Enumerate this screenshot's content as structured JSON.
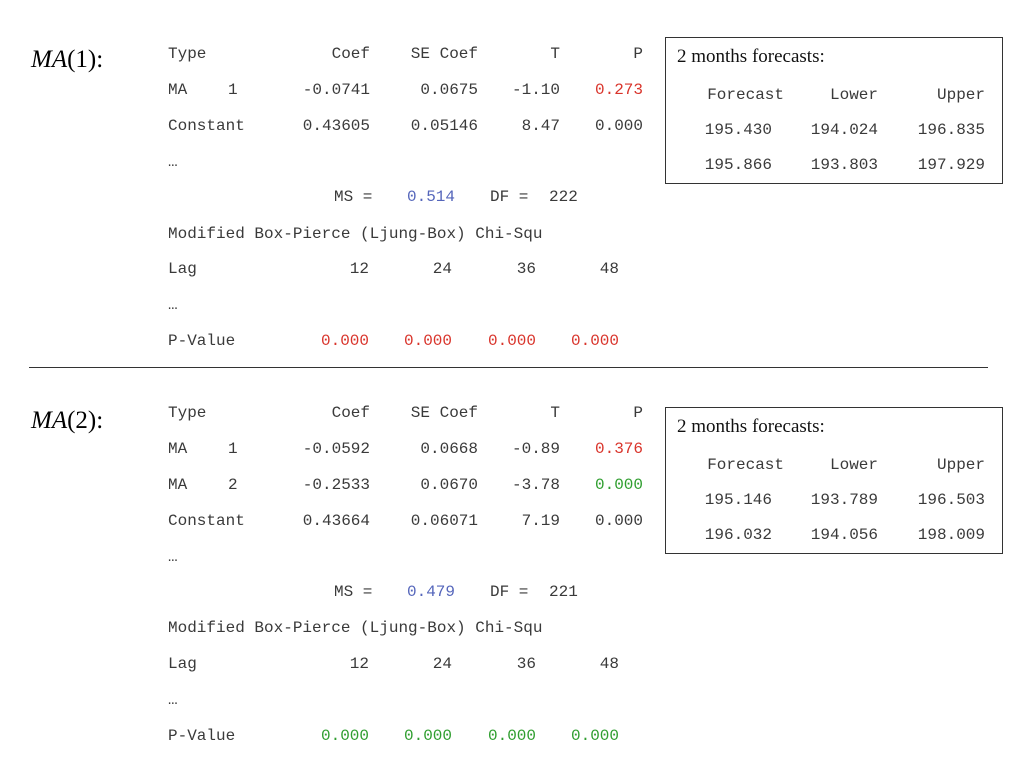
{
  "models": [
    {
      "label_name": "MA",
      "label_order": "(1):",
      "coef_header": [
        "Type",
        "Coef",
        "SE Coef",
        "T",
        "P"
      ],
      "coef_rows": [
        {
          "type_a": "MA",
          "type_b": "1",
          "coef": "-0.0741",
          "se": "0.0675",
          "t": "-1.10",
          "p": "0.273",
          "p_color": "#d9342b"
        },
        {
          "type_a": "Constant",
          "type_b": "",
          "coef": "0.43605",
          "se": "0.05146",
          "t": "8.47",
          "p": "0.000",
          "p_color": "#3a3a3a"
        }
      ],
      "ellipsis": "…",
      "ms_label": "MS =",
      "ms_value": "0.514",
      "df_label": "DF =",
      "df_value": "222",
      "boxpierce_title": "Modified Box-Pierce (Ljung-Box) Chi-Squ",
      "lag_label": "Lag",
      "lags": [
        "12",
        "24",
        "36",
        "48"
      ],
      "pvalue_label": "P-Value",
      "pvalues": [
        "0.000",
        "0.000",
        "0.000",
        "0.000"
      ],
      "pvalue_color": "#d9342b",
      "forecast": {
        "title": "2 months forecasts:",
        "headers": [
          "Forecast",
          "Lower",
          "Upper"
        ],
        "rows": [
          [
            "195.430",
            "194.024",
            "196.835"
          ],
          [
            "195.866",
            "193.803",
            "197.929"
          ]
        ]
      }
    },
    {
      "label_name": "MA",
      "label_order": "(2):",
      "coef_header": [
        "Type",
        "Coef",
        "SE Coef",
        "T",
        "P"
      ],
      "coef_rows": [
        {
          "type_a": "MA",
          "type_b": "1",
          "coef": "-0.0592",
          "se": "0.0668",
          "t": "-0.89",
          "p": "0.376",
          "p_color": "#d9342b"
        },
        {
          "type_a": "MA",
          "type_b": "2",
          "coef": "-0.2533",
          "se": "0.0670",
          "t": "-3.78",
          "p": "0.000",
          "p_color": "#2f9e2f"
        },
        {
          "type_a": "Constant",
          "type_b": "",
          "coef": "0.43664",
          "se": "0.06071",
          "t": "7.19",
          "p": "0.000",
          "p_color": "#3a3a3a"
        }
      ],
      "ellipsis": "…",
      "ms_label": "MS =",
      "ms_value": "0.479",
      "df_label": "DF =",
      "df_value": "221",
      "boxpierce_title": "Modified Box-Pierce (Ljung-Box) Chi-Squ",
      "lag_label": "Lag",
      "lags": [
        "12",
        "24",
        "36",
        "48"
      ],
      "pvalue_label": "P-Value",
      "pvalues": [
        "0.000",
        "0.000",
        "0.000",
        "0.000"
      ],
      "pvalue_color": "#2f9e2f",
      "forecast": {
        "title": "2 months forecasts:",
        "headers": [
          "Forecast",
          "Lower",
          "Upper"
        ],
        "rows": [
          [
            "195.146",
            "193.789",
            "196.503"
          ],
          [
            "196.032",
            "194.056",
            "198.009"
          ]
        ]
      }
    }
  ],
  "colors": {
    "text": "#3a3a3a",
    "red": "#d9342b",
    "green": "#2f9e2f",
    "blue": "#5566bb"
  }
}
